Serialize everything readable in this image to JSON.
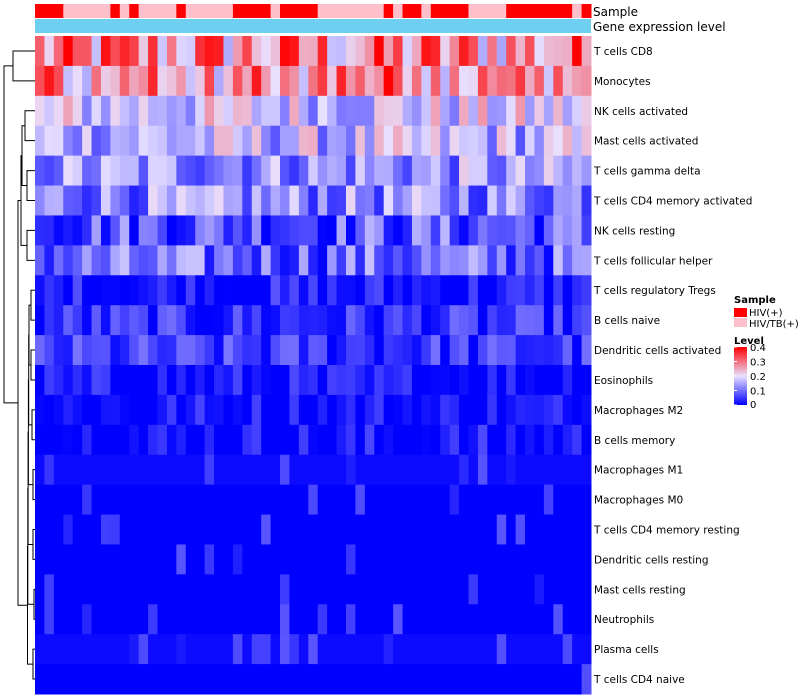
{
  "chart_data": {
    "type": "heatmap",
    "title": "",
    "xlabel": "",
    "ylabel": "",
    "annotations": {
      "sample_label": "Sample",
      "expression_label": "Gene expression level"
    },
    "colors": {
      "low": "#0000ff",
      "mid": "#e8e0ff",
      "high": "#ff0000",
      "hiv": "#ff0000",
      "hivtb": "#ffc0cb",
      "expression_bar": "#6fcff0",
      "tree": "#000000"
    },
    "sample_groups": [
      "HIV(+)",
      "HIV(+)",
      "HIV(+)",
      "HIV/TB(+)",
      "HIV/TB(+)",
      "HIV/TB(+)",
      "HIV/TB(+)",
      "HIV/TB(+)",
      "HIV(+)",
      "HIV/TB(+)",
      "HIV(+)",
      "HIV/TB(+)",
      "HIV/TB(+)",
      "HIV/TB(+)",
      "HIV/TB(+)",
      "HIV(+)",
      "HIV/TB(+)",
      "HIV/TB(+)",
      "HIV/TB(+)",
      "HIV/TB(+)",
      "HIV/TB(+)",
      "HIV(+)",
      "HIV(+)",
      "HIV(+)",
      "HIV(+)",
      "HIV/TB(+)",
      "HIV(+)",
      "HIV(+)",
      "HIV(+)",
      "HIV(+)",
      "HIV/TB(+)",
      "HIV/TB(+)",
      "HIV/TB(+)",
      "HIV/TB(+)",
      "HIV/TB(+)",
      "HIV/TB(+)",
      "HIV/TB(+)",
      "HIV(+)",
      "HIV/TB(+)",
      "HIV(+)",
      "HIV(+)",
      "HIV/TB(+)",
      "HIV(+)",
      "HIV(+)",
      "HIV(+)",
      "HIV(+)",
      "HIV/TB(+)",
      "HIV/TB(+)",
      "HIV/TB(+)",
      "HIV/TB(+)",
      "HIV(+)",
      "HIV(+)",
      "HIV(+)",
      "HIV(+)",
      "HIV(+)",
      "HIV(+)",
      "HIV(+)",
      "HIV/TB(+)",
      "HIV(+)"
    ],
    "rows": [
      {
        "name": "T cells CD8",
        "profile": "cd8"
      },
      {
        "name": "Monocytes",
        "profile": "mono"
      },
      {
        "name": "NK cells activated",
        "profile": "mid",
        "base": 0.18
      },
      {
        "name": "Mast cells activated",
        "profile": "mid",
        "base": 0.16
      },
      {
        "name": "T cells gamma delta",
        "profile": "mid",
        "base": 0.13
      },
      {
        "name": "T cells CD4 memory activated",
        "profile": "mid",
        "base": 0.12
      },
      {
        "name": "NK cells resting",
        "profile": "mid",
        "base": 0.08
      },
      {
        "name": "T cells follicular helper",
        "profile": "mid",
        "base": 0.09
      },
      {
        "name": "T cells regulatory  Tregs",
        "profile": "low",
        "base": 0.03
      },
      {
        "name": "B cells naive",
        "profile": "low",
        "base": 0.05
      },
      {
        "name": "Dendritic cells activated",
        "profile": "low",
        "base": 0.06
      },
      {
        "name": "Eosinophils",
        "profile": "low",
        "base": 0.02
      },
      {
        "name": "Macrophages M2",
        "profile": "low",
        "base": 0.02
      },
      {
        "name": "B cells memory",
        "profile": "low",
        "base": 0.02
      },
      {
        "name": "Macrophages M1",
        "profile": "zero",
        "base": 0.01
      },
      {
        "name": "Macrophages M0",
        "profile": "zero",
        "base": 0.0
      },
      {
        "name": "T cells CD4 memory resting",
        "profile": "zero",
        "base": 0.0
      },
      {
        "name": "Dendritic cells resting",
        "profile": "zero",
        "base": 0.0
      },
      {
        "name": "Mast cells resting",
        "profile": "zero",
        "base": 0.0
      },
      {
        "name": "Neutrophils",
        "profile": "zero",
        "base": 0.0
      },
      {
        "name": "Plasma cells",
        "profile": "zero",
        "base": 0.01
      },
      {
        "name": "T cells CD4 naive",
        "profile": "zero",
        "base": 0.0
      }
    ],
    "n_columns": 59,
    "value_range": [
      0,
      0.4
    ],
    "legend": {
      "position": "right",
      "sample_title": "Sample",
      "sample_items": [
        "HIV(+)",
        "HIV/TB(+)"
      ],
      "level_title": "Level",
      "level_ticks": [
        {
          "label": "0.4",
          "value": 0.4
        },
        {
          "label": "0.3",
          "value": 0.3
        },
        {
          "label": "0.2",
          "value": 0.2
        },
        {
          "label": "0.1",
          "value": 0.1
        },
        {
          "label": "0",
          "value": 0
        }
      ]
    }
  }
}
